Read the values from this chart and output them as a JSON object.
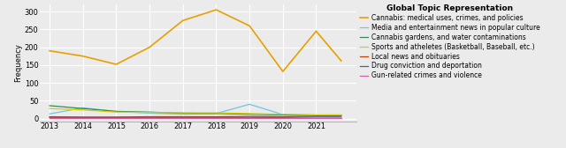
{
  "title": "Global Topic Representation",
  "ylabel": "Frequency",
  "years": [
    2013,
    2014,
    2015,
    2016,
    2017,
    2018,
    2019,
    2020,
    2021,
    2021.75
  ],
  "series": [
    {
      "label": "Cannabis: medical uses, crimes, and policies",
      "color": "#E8A000",
      "linewidth": 1.2,
      "data": [
        190,
        175,
        152,
        200,
        275,
        305,
        260,
        132,
        245,
        162
      ]
    },
    {
      "label": "Media and entertainment news in popular culture",
      "color": "#6EC6E6",
      "linewidth": 0.9,
      "data": [
        13,
        30,
        20,
        15,
        12,
        14,
        40,
        11,
        10,
        10
      ]
    },
    {
      "label": "Cannabis gardens, and water contaminations",
      "color": "#2E8B57",
      "linewidth": 0.9,
      "data": [
        36,
        28,
        20,
        18,
        15,
        14,
        12,
        10,
        9,
        9
      ]
    },
    {
      "label": "Sports and atheletes (Basketball, Baseball, etc.)",
      "color": "#D4D000",
      "linewidth": 0.9,
      "data": [
        28,
        24,
        18,
        17,
        16,
        16,
        14,
        12,
        10,
        10
      ]
    },
    {
      "label": "Local news and obituaries",
      "color": "#C04000",
      "linewidth": 0.9,
      "data": [
        5,
        4,
        4,
        5,
        5,
        5,
        6,
        5,
        7,
        7
      ]
    },
    {
      "label": "Drug conviction and deportation",
      "color": "#4060C0",
      "linewidth": 0.9,
      "data": [
        3,
        3,
        3,
        3,
        3,
        3,
        3,
        3,
        4,
        4
      ]
    },
    {
      "label": "Gun-related crimes and violence",
      "color": "#D060A0",
      "linewidth": 0.9,
      "data": [
        1,
        1,
        1,
        1,
        1,
        1,
        1,
        1,
        1,
        1
      ]
    }
  ],
  "ylim": [
    -8,
    320
  ],
  "yticks": [
    0,
    50,
    100,
    150,
    200,
    250,
    300
  ],
  "xticks": [
    2013,
    2014,
    2015,
    2016,
    2017,
    2018,
    2019,
    2020,
    2021
  ],
  "background_color": "#ebebeb",
  "grid_color": "#ffffff",
  "title_fontsize": 6.5,
  "legend_fontsize": 5.5,
  "axis_fontsize": 6
}
